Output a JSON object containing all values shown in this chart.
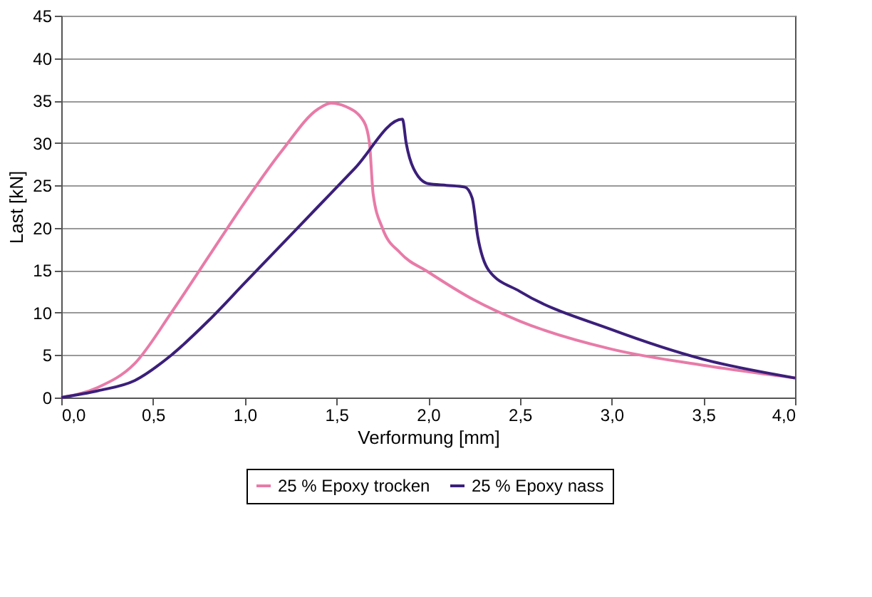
{
  "chart_data": {
    "type": "line",
    "xlabel": "Verformung [mm]",
    "ylabel": "Last [kN]",
    "xlim": [
      0,
      4
    ],
    "ylim": [
      0,
      45
    ],
    "xticks": [
      {
        "value": 0,
        "label": "0,0"
      },
      {
        "value": 0.5,
        "label": "0,5"
      },
      {
        "value": 1,
        "label": "1,0"
      },
      {
        "value": 1.5,
        "label": "1,5"
      },
      {
        "value": 2,
        "label": "2,0"
      },
      {
        "value": 2.5,
        "label": "2,5"
      },
      {
        "value": 3,
        "label": "3,0"
      },
      {
        "value": 3.5,
        "label": "3,5"
      },
      {
        "value": 4,
        "label": "4,0"
      }
    ],
    "yticks": [
      0,
      5,
      10,
      15,
      20,
      25,
      30,
      35,
      40,
      45
    ],
    "grid": "y",
    "legend": "bottom",
    "marker": "none",
    "line_style": "solid",
    "series": [
      {
        "name": "25 % Epoxy trocken",
        "color": "#e87ba8",
        "x": [
          0,
          0.2,
          0.4,
          0.6,
          0.8,
          1.0,
          1.2,
          1.4,
          1.47,
          1.55,
          1.65,
          1.68,
          1.7,
          1.75,
          1.85,
          2.0,
          2.25,
          2.5,
          3.0,
          3.5,
          4.0
        ],
        "values": [
          0,
          1.2,
          4,
          10,
          16.5,
          23,
          29,
          34,
          34.7,
          34.3,
          32.5,
          30,
          24,
          20,
          17,
          14.8,
          11.5,
          9,
          5.7,
          3.8,
          2.3
        ]
      },
      {
        "name": "25 % Epoxy nass",
        "color": "#3b1f7a",
        "x": [
          0,
          0.2,
          0.4,
          0.6,
          0.8,
          1.0,
          1.2,
          1.4,
          1.6,
          1.86,
          1.88,
          1.92,
          2.0,
          2.1,
          2.2,
          2.24,
          2.27,
          2.33,
          2.5,
          3.0,
          3.5,
          4.0
        ],
        "values": [
          0,
          0.8,
          2,
          5,
          9,
          13.5,
          18,
          22.5,
          27,
          32.8,
          30,
          27,
          25.2,
          25,
          24.8,
          23.5,
          19,
          15,
          12.5,
          8,
          4.5,
          2.3
        ]
      }
    ]
  }
}
